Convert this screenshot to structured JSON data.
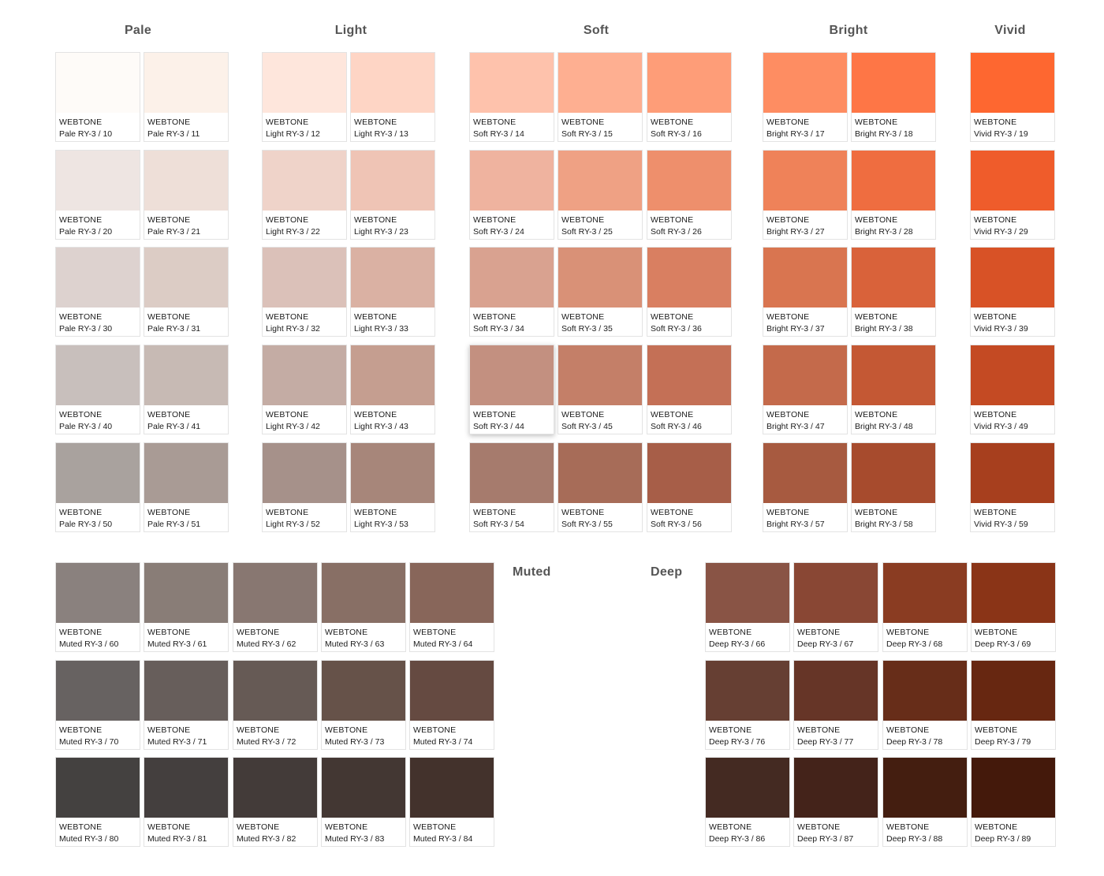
{
  "brand": "WEBTONE",
  "groups": [
    {
      "id": "pale",
      "title": "Pale",
      "swatches": [
        {
          "code": "Pale RY-3 / 10",
          "color": "#FEFBF8"
        },
        {
          "code": "Pale RY-3 / 11",
          "color": "#FCF1E9"
        },
        {
          "code": "Pale RY-3 / 20",
          "color": "#EEE5E2"
        },
        {
          "code": "Pale RY-3 / 21",
          "color": "#EEDFD8"
        },
        {
          "code": "Pale RY-3 / 30",
          "color": "#DDD2CF"
        },
        {
          "code": "Pale RY-3 / 31",
          "color": "#DCCCC5"
        },
        {
          "code": "Pale RY-3 / 40",
          "color": "#C8BFBC"
        },
        {
          "code": "Pale RY-3 / 41",
          "color": "#C7BAB4"
        },
        {
          "code": "Pale RY-3 / 50",
          "color": "#A9A29E"
        },
        {
          "code": "Pale RY-3 / 51",
          "color": "#A99B95"
        }
      ]
    },
    {
      "id": "light",
      "title": "Light",
      "swatches": [
        {
          "code": "Light RY-3 / 12",
          "color": "#FEE6DC"
        },
        {
          "code": "Light RY-3 / 13",
          "color": "#FED5C5"
        },
        {
          "code": "Light RY-3 / 22",
          "color": "#EFD3C9"
        },
        {
          "code": "Light RY-3 / 23",
          "color": "#EFC4B5"
        },
        {
          "code": "Light RY-3 / 32",
          "color": "#DBC1B9"
        },
        {
          "code": "Light RY-3 / 33",
          "color": "#DAB1A3"
        },
        {
          "code": "Light RY-3 / 42",
          "color": "#C4ACA4"
        },
        {
          "code": "Light RY-3 / 43",
          "color": "#C59E90"
        },
        {
          "code": "Light RY-3 / 52",
          "color": "#A6918A"
        },
        {
          "code": "Light RY-3 / 53",
          "color": "#A7867A"
        }
      ]
    },
    {
      "id": "soft",
      "title": "Soft",
      "swatches": [
        {
          "code": "Soft RY-3 / 14",
          "color": "#FEC2AC"
        },
        {
          "code": "Soft RY-3 / 15",
          "color": "#FEAF91"
        },
        {
          "code": "Soft RY-3 / 16",
          "color": "#FE9D78"
        },
        {
          "code": "Soft RY-3 / 24",
          "color": "#EFB39F"
        },
        {
          "code": "Soft RY-3 / 25",
          "color": "#EFA184"
        },
        {
          "code": "Soft RY-3 / 26",
          "color": "#EE8F6C"
        },
        {
          "code": "Soft RY-3 / 34",
          "color": "#D9A290"
        },
        {
          "code": "Soft RY-3 / 35",
          "color": "#D99177"
        },
        {
          "code": "Soft RY-3 / 36",
          "color": "#D97F61"
        },
        {
          "code": "Soft RY-3 / 44",
          "color": "#C39080",
          "lifted": true
        },
        {
          "code": "Soft RY-3 / 45",
          "color": "#C47F68"
        },
        {
          "code": "Soft RY-3 / 46",
          "color": "#C47056"
        },
        {
          "code": "Soft RY-3 / 54",
          "color": "#A67B6D"
        },
        {
          "code": "Soft RY-3 / 55",
          "color": "#A76C58"
        },
        {
          "code": "Soft RY-3 / 56",
          "color": "#A75E48"
        }
      ]
    },
    {
      "id": "bright",
      "title": "Bright",
      "swatches": [
        {
          "code": "Bright RY-3 / 17",
          "color": "#FE8D62"
        },
        {
          "code": "Bright RY-3 / 18",
          "color": "#FE7646"
        },
        {
          "code": "Bright RY-3 / 27",
          "color": "#EF8259"
        },
        {
          "code": "Bright RY-3 / 28",
          "color": "#EF6D40"
        },
        {
          "code": "Bright RY-3 / 37",
          "color": "#D97550"
        },
        {
          "code": "Bright RY-3 / 38",
          "color": "#D9623A"
        },
        {
          "code": "Bright RY-3 / 47",
          "color": "#C46A4B"
        },
        {
          "code": "Bright RY-3 / 48",
          "color": "#C45834"
        },
        {
          "code": "Bright RY-3 / 57",
          "color": "#A75A40"
        },
        {
          "code": "Bright RY-3 / 58",
          "color": "#A74B2D"
        }
      ]
    },
    {
      "id": "vivid",
      "title": "Vivid",
      "swatches": [
        {
          "code": "Vivid RY-3 / 19",
          "color": "#FE6730"
        },
        {
          "code": "Vivid RY-3 / 29",
          "color": "#EF5C2B"
        },
        {
          "code": "Vivid RY-3 / 39",
          "color": "#D85226"
        },
        {
          "code": "Vivid RY-3 / 49",
          "color": "#C44A23"
        },
        {
          "code": "Vivid RY-3 / 59",
          "color": "#A73F1E"
        }
      ]
    },
    {
      "id": "muted",
      "title": "Muted",
      "swatches": [
        {
          "code": "Muted RY-3 / 60",
          "color": "#8A817E"
        },
        {
          "code": "Muted RY-3 / 61",
          "color": "#897D77"
        },
        {
          "code": "Muted RY-3 / 62",
          "color": "#887771"
        },
        {
          "code": "Muted RY-3 / 63",
          "color": "#886F65"
        },
        {
          "code": "Muted RY-3 / 64",
          "color": "#88665A"
        },
        {
          "code": "Muted RY-3 / 70",
          "color": "#676261"
        },
        {
          "code": "Muted RY-3 / 71",
          "color": "#675E5B"
        },
        {
          "code": "Muted RY-3 / 72",
          "color": "#665A55"
        },
        {
          "code": "Muted RY-3 / 73",
          "color": "#665249"
        },
        {
          "code": "Muted RY-3 / 74",
          "color": "#654A41"
        },
        {
          "code": "Muted RY-3 / 80",
          "color": "#444140"
        },
        {
          "code": "Muted RY-3 / 81",
          "color": "#443F3E"
        },
        {
          "code": "Muted RY-3 / 82",
          "color": "#433B39"
        },
        {
          "code": "Muted RY-3 / 83",
          "color": "#433733"
        },
        {
          "code": "Muted RY-3 / 84",
          "color": "#43322C"
        }
      ]
    },
    {
      "id": "deep",
      "title": "Deep",
      "swatches": [
        {
          "code": "Deep RY-3 / 66",
          "color": "#895445"
        },
        {
          "code": "Deep RY-3 / 67",
          "color": "#894734"
        },
        {
          "code": "Deep RY-3 / 68",
          "color": "#8A3C22"
        },
        {
          "code": "Deep RY-3 / 69",
          "color": "#8A3417"
        },
        {
          "code": "Deep RY-3 / 76",
          "color": "#663F33"
        },
        {
          "code": "Deep RY-3 / 77",
          "color": "#663527"
        },
        {
          "code": "Deep RY-3 / 78",
          "color": "#672D19"
        },
        {
          "code": "Deep RY-3 / 79",
          "color": "#672711"
        },
        {
          "code": "Deep RY-3 / 86",
          "color": "#442A22"
        },
        {
          "code": "Deep RY-3 / 87",
          "color": "#44231A"
        },
        {
          "code": "Deep RY-3 / 88",
          "color": "#441E10"
        },
        {
          "code": "Deep RY-3 / 89",
          "color": "#44190B"
        }
      ]
    }
  ]
}
